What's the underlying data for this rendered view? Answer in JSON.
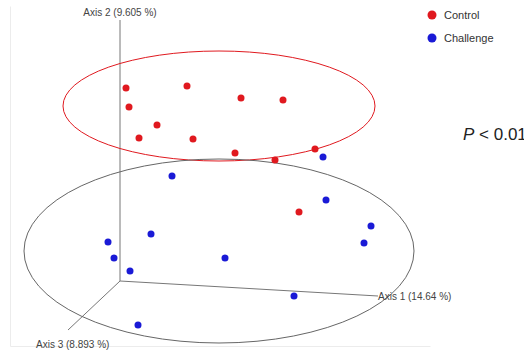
{
  "chart_data": {
    "type": "scatter",
    "x_label": "Axis 1 (14.64 %)",
    "y_label": "Axis 2 (9.605 %)",
    "z_label": "Axis 3 (8.893 %)",
    "annotation": "P < 0.01",
    "xlim": [
      -1.1,
      3.1
    ],
    "ylim": [
      -0.65,
      2.75
    ],
    "tick_labels": false,
    "legend": "top-right",
    "marker": "circle",
    "series": [
      {
        "name": "Control",
        "color": "#e0191f",
        "x": [
          0.06,
          0.67,
          1.21,
          1.63,
          0.09,
          0.37,
          0.19,
          0.73,
          1.15,
          1.55,
          1.95,
          1.79
        ],
        "values": [
          1.93,
          1.95,
          1.83,
          1.81,
          1.74,
          1.56,
          1.43,
          1.42,
          1.28,
          1.21,
          1.32,
          0.69
        ],
        "ellipse": {
          "cx": 0.99,
          "cy": 1.75,
          "rx": 1.56,
          "ry": 0.55
        }
      },
      {
        "name": "Challenge",
        "color": "#1a1ad6",
        "x": [
          2.03,
          0.52,
          2.06,
          2.51,
          2.44,
          -0.12,
          0.31,
          -0.06,
          0.1,
          1.05,
          1.74,
          0.18
        ],
        "values": [
          1.24,
          1.05,
          0.81,
          0.55,
          0.38,
          0.39,
          0.47,
          0.23,
          0.1,
          0.23,
          -0.15,
          -0.44
        ],
        "ellipse": {
          "cx": 0.99,
          "cy": 0.3,
          "rx": 1.95,
          "ry": 0.92
        }
      }
    ]
  }
}
